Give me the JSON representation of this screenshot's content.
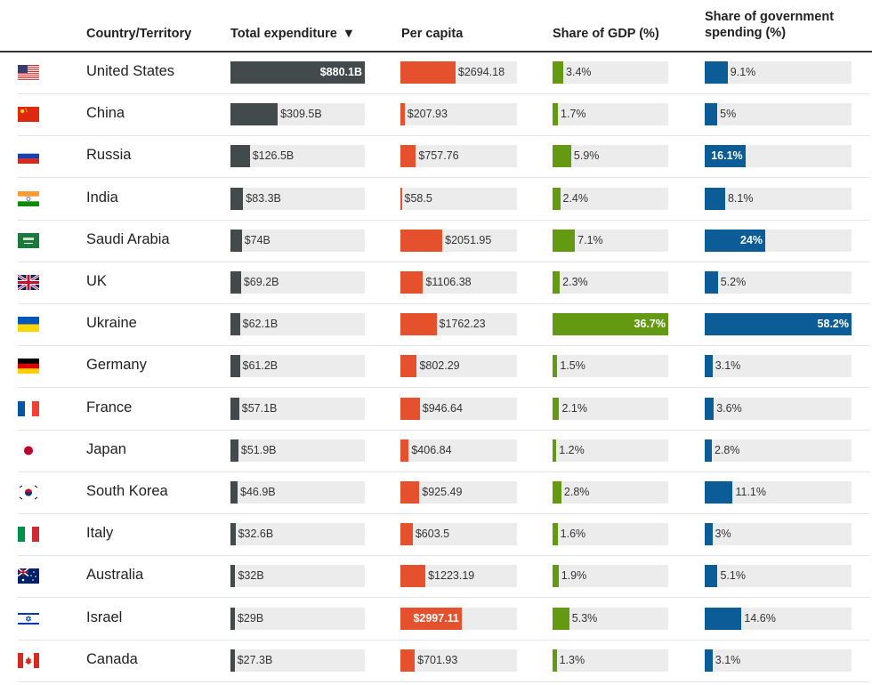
{
  "headers": {
    "country": "Country/Territory",
    "total": "Total expenditure",
    "sort_icon": "▼",
    "per_capita": "Per capita",
    "gdp": "Share of GDP (%)",
    "gov": "Share of government spending (%)"
  },
  "colors": {
    "total": "#434a4c",
    "per_capita": "#e4512c",
    "gdp": "#649a12",
    "gov": "#0b5c97",
    "track": "#ececec"
  },
  "chart_data": {
    "type": "table",
    "columns": [
      "Country/Territory",
      "Total expenditure",
      "Per capita",
      "Share of GDP (%)",
      "Share of government spending (%)"
    ],
    "rows": [
      {
        "flag": "us",
        "country": "United States",
        "total": 880.1,
        "total_label": "$880.1B",
        "per_capita": 2694.18,
        "per_capita_label": "$2694.18",
        "gdp": 3.4,
        "gdp_label": "3.4%",
        "gov": 9.1,
        "gov_label": "9.1%"
      },
      {
        "flag": "cn",
        "country": "China",
        "total": 309.5,
        "total_label": "$309.5B",
        "per_capita": 207.93,
        "per_capita_label": "$207.93",
        "gdp": 1.7,
        "gdp_label": "1.7%",
        "gov": 5,
        "gov_label": "5%"
      },
      {
        "flag": "ru",
        "country": "Russia",
        "total": 126.5,
        "total_label": "$126.5B",
        "per_capita": 757.76,
        "per_capita_label": "$757.76",
        "gdp": 5.9,
        "gdp_label": "5.9%",
        "gov": 16.1,
        "gov_label": "16.1%"
      },
      {
        "flag": "in",
        "country": "India",
        "total": 83.3,
        "total_label": "$83.3B",
        "per_capita": 58.5,
        "per_capita_label": "$58.5",
        "gdp": 2.4,
        "gdp_label": "2.4%",
        "gov": 8.1,
        "gov_label": "8.1%"
      },
      {
        "flag": "sa",
        "country": "Saudi Arabia",
        "total": 74,
        "total_label": "$74B",
        "per_capita": 2051.95,
        "per_capita_label": "$2051.95",
        "gdp": 7.1,
        "gdp_label": "7.1%",
        "gov": 24,
        "gov_label": "24%"
      },
      {
        "flag": "uk",
        "country": "UK",
        "total": 69.2,
        "total_label": "$69.2B",
        "per_capita": 1106.38,
        "per_capita_label": "$1106.38",
        "gdp": 2.3,
        "gdp_label": "2.3%",
        "gov": 5.2,
        "gov_label": "5.2%"
      },
      {
        "flag": "ua",
        "country": "Ukraine",
        "total": 62.1,
        "total_label": "$62.1B",
        "per_capita": 1762.23,
        "per_capita_label": "$1762.23",
        "gdp": 36.7,
        "gdp_label": "36.7%",
        "gov": 58.2,
        "gov_label": "58.2%"
      },
      {
        "flag": "de",
        "country": "Germany",
        "total": 61.2,
        "total_label": "$61.2B",
        "per_capita": 802.29,
        "per_capita_label": "$802.29",
        "gdp": 1.5,
        "gdp_label": "1.5%",
        "gov": 3.1,
        "gov_label": "3.1%"
      },
      {
        "flag": "fr",
        "country": "France",
        "total": 57.1,
        "total_label": "$57.1B",
        "per_capita": 946.64,
        "per_capita_label": "$946.64",
        "gdp": 2.1,
        "gdp_label": "2.1%",
        "gov": 3.6,
        "gov_label": "3.6%"
      },
      {
        "flag": "jp",
        "country": "Japan",
        "total": 51.9,
        "total_label": "$51.9B",
        "per_capita": 406.84,
        "per_capita_label": "$406.84",
        "gdp": 1.2,
        "gdp_label": "1.2%",
        "gov": 2.8,
        "gov_label": "2.8%"
      },
      {
        "flag": "kr",
        "country": "South Korea",
        "total": 46.9,
        "total_label": "$46.9B",
        "per_capita": 925.49,
        "per_capita_label": "$925.49",
        "gdp": 2.8,
        "gdp_label": "2.8%",
        "gov": 11.1,
        "gov_label": "11.1%"
      },
      {
        "flag": "it",
        "country": "Italy",
        "total": 32.6,
        "total_label": "$32.6B",
        "per_capita": 603.5,
        "per_capita_label": "$603.5",
        "gdp": 1.6,
        "gdp_label": "1.6%",
        "gov": 3,
        "gov_label": "3%"
      },
      {
        "flag": "au",
        "country": "Australia",
        "total": 32,
        "total_label": "$32B",
        "per_capita": 1223.19,
        "per_capita_label": "$1223.19",
        "gdp": 1.9,
        "gdp_label": "1.9%",
        "gov": 5.1,
        "gov_label": "5.1%"
      },
      {
        "flag": "il",
        "country": "Israel",
        "total": 29,
        "total_label": "$29B",
        "per_capita": 2997.11,
        "per_capita_label": "$2997.11",
        "gdp": 5.3,
        "gdp_label": "5.3%",
        "gov": 14.6,
        "gov_label": "14.6%"
      },
      {
        "flag": "ca",
        "country": "Canada",
        "total": 27.3,
        "total_label": "$27.3B",
        "per_capita": 701.93,
        "per_capita_label": "$701.93",
        "gdp": 1.3,
        "gdp_label": "1.3%",
        "gov": 3.1,
        "gov_label": "3.1%"
      }
    ]
  }
}
